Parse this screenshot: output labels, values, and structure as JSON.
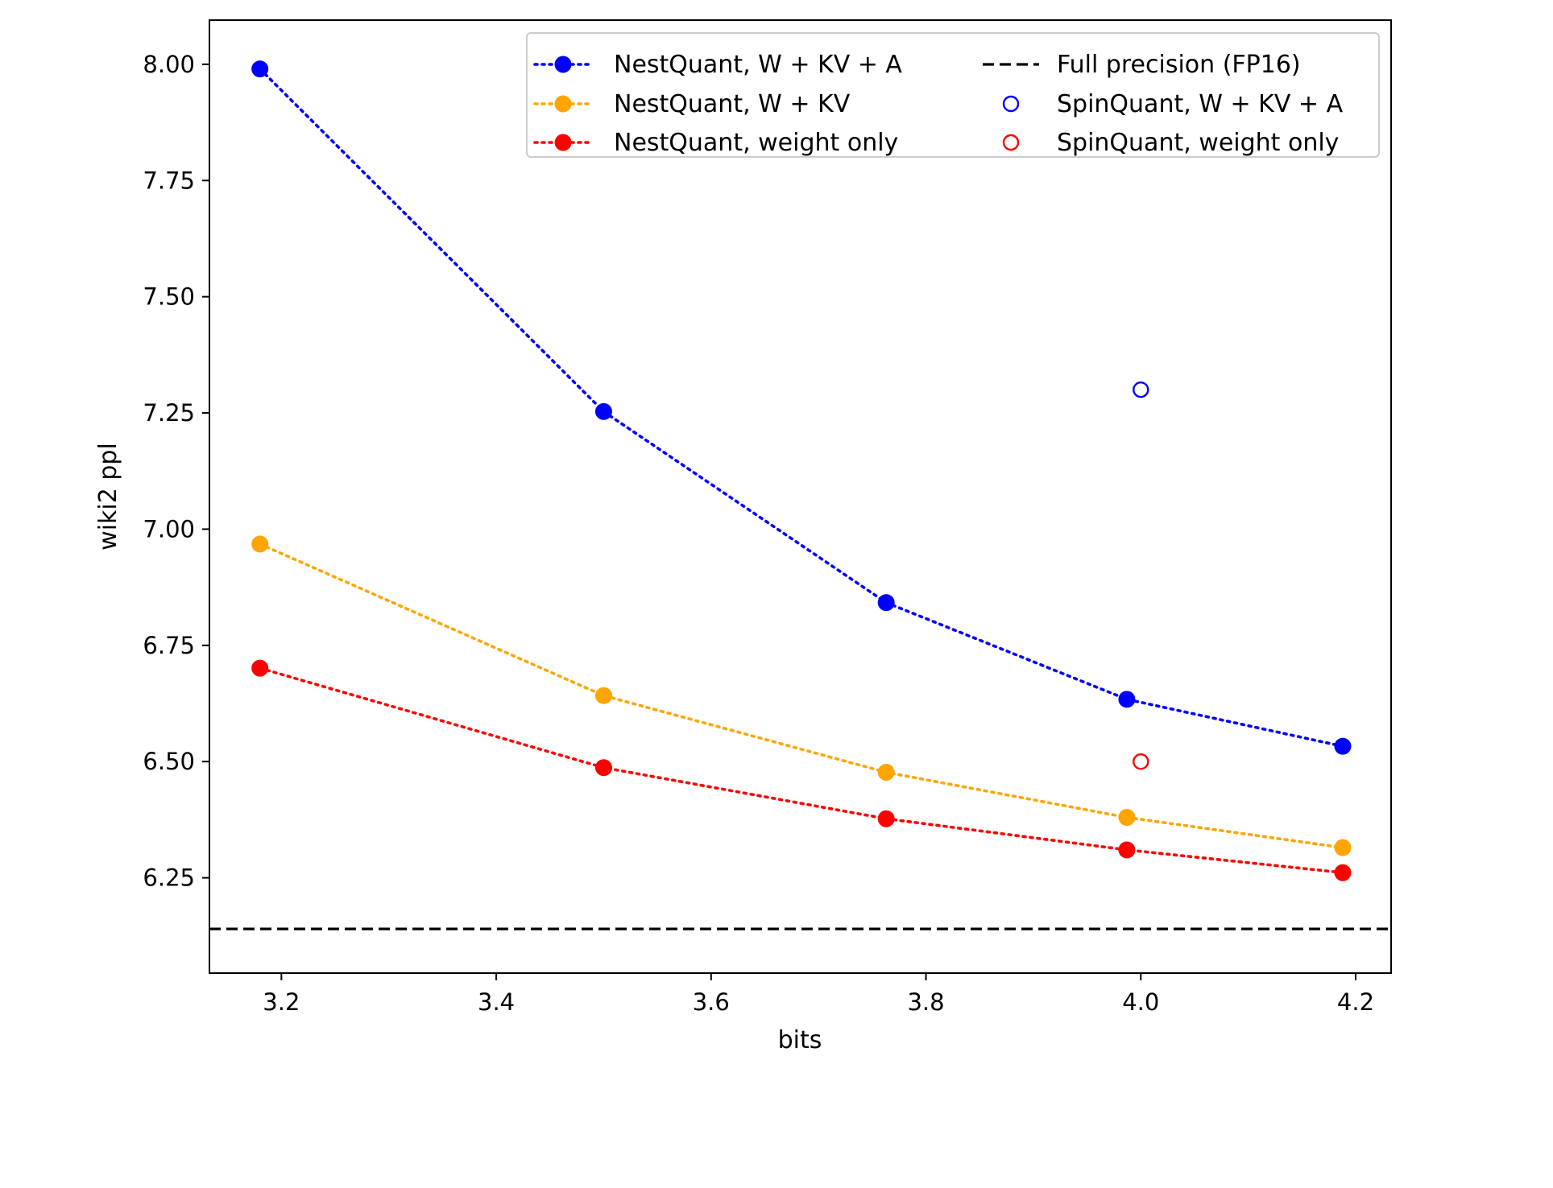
{
  "chart_data": {
    "type": "line",
    "title": "",
    "xlabel": "bits",
    "ylabel": "wiki2 ppl",
    "xlim": [
      3.133,
      4.233
    ],
    "ylim": [
      6.045,
      8.095
    ],
    "xticks": [
      3.2,
      3.4,
      3.6,
      3.8,
      4.0,
      4.2
    ],
    "xtick_labels": [
      "3.2",
      "3.4",
      "3.6",
      "3.8",
      "4.0",
      "4.2"
    ],
    "yticks": [
      6.25,
      6.5,
      6.75,
      7.0,
      7.25,
      7.5,
      7.75,
      8.0
    ],
    "ytick_labels": [
      "6.25",
      "6.50",
      "6.75",
      "7.00",
      "7.25",
      "7.50",
      "7.75",
      "8.00"
    ],
    "grid": false,
    "legend_position": "top-right",
    "series": [
      {
        "name": "NestQuant, W + KV + A",
        "color": "#0000ff",
        "style": "dotted-line-filled-markers",
        "x": [
          3.18,
          3.5,
          3.763,
          3.987,
          4.188
        ],
        "y": [
          7.99,
          7.253,
          6.842,
          6.634,
          6.533
        ]
      },
      {
        "name": "NestQuant, W + KV",
        "color": "#ffa500",
        "style": "dotted-line-filled-markers",
        "x": [
          3.18,
          3.5,
          3.763,
          3.987,
          4.188
        ],
        "y": [
          6.968,
          6.642,
          6.477,
          6.38,
          6.315
        ]
      },
      {
        "name": "NestQuant, weight only",
        "color": "#ff0000",
        "style": "dotted-line-filled-markers",
        "x": [
          3.18,
          3.5,
          3.763,
          3.987,
          4.188
        ],
        "y": [
          6.701,
          6.487,
          6.377,
          6.31,
          6.261
        ]
      },
      {
        "name": "Full precision (FP16)",
        "color": "#000000",
        "style": "dashed-hline",
        "y": 6.14
      },
      {
        "name": "SpinQuant, W + KV + A",
        "color": "#0000ff",
        "style": "open-marker",
        "x": [
          4.0
        ],
        "y": [
          7.3
        ]
      },
      {
        "name": "SpinQuant, weight only",
        "color": "#ff0000",
        "style": "open-marker",
        "x": [
          4.0
        ],
        "y": [
          6.5
        ]
      }
    ]
  }
}
